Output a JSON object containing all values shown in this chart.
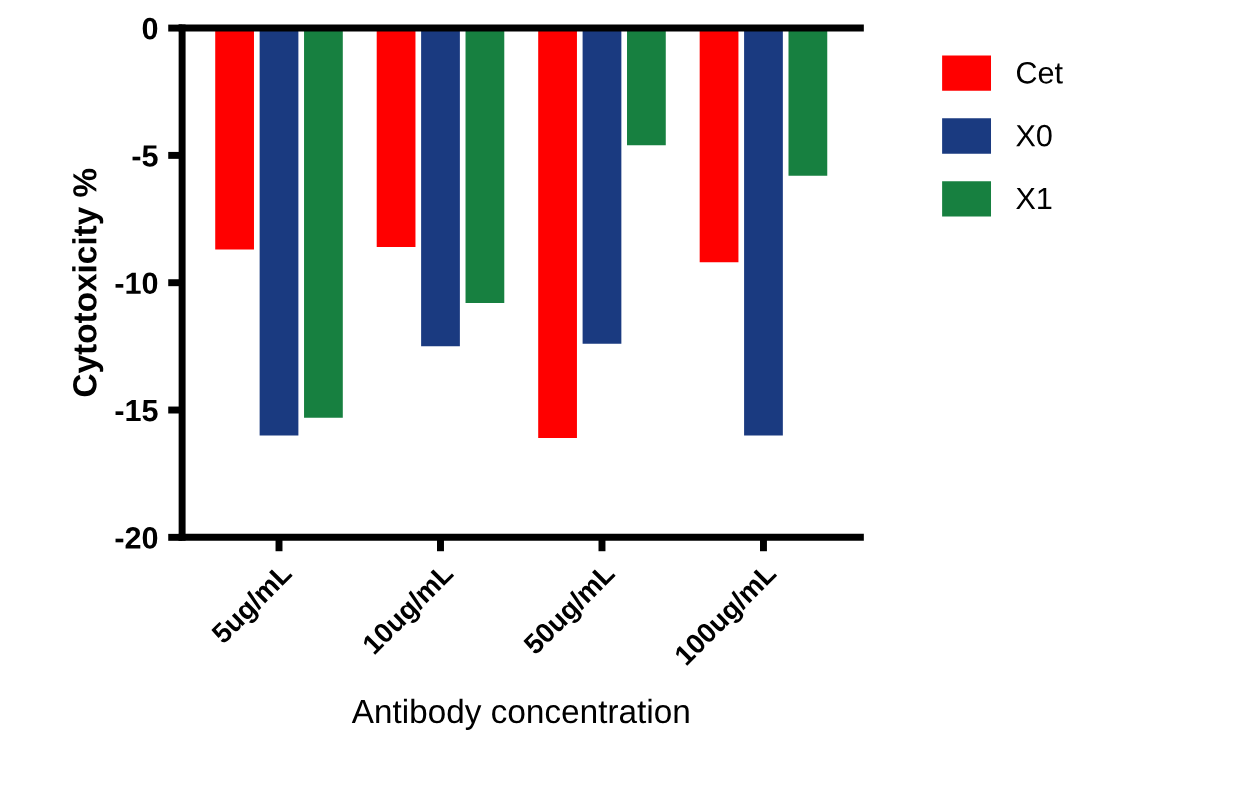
{
  "chart_data": {
    "type": "bar",
    "xlabel": "Antibody concentration",
    "ylabel": "Cytotoxicity %",
    "categories": [
      "5ug/mL",
      "10ug/mL",
      "50ug/mL",
      "100ug/mL"
    ],
    "series": [
      {
        "name": "Cet",
        "color": "#ff0000",
        "values": [
          -8.7,
          -8.6,
          -16.1,
          -9.2
        ]
      },
      {
        "name": "X0",
        "color": "#1a3a80",
        "values": [
          -16.0,
          -12.5,
          -12.4,
          -16.0
        ]
      },
      {
        "name": "X1",
        "color": "#178040",
        "values": [
          -15.3,
          -10.8,
          -4.6,
          -5.8
        ]
      }
    ],
    "ylim": [
      -20,
      0
    ],
    "yticks": [
      {
        "value": -20,
        "label": "-20"
      },
      {
        "value": -15,
        "label": "-15"
      },
      {
        "value": -10,
        "label": "-10"
      },
      {
        "value": -5,
        "label": "-5"
      },
      0
    ],
    "grid": false,
    "legend": "top right"
  }
}
